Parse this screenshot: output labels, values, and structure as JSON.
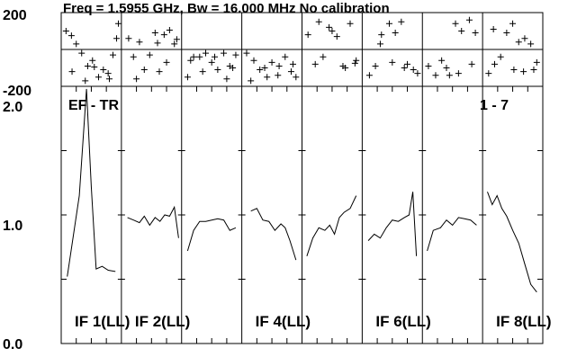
{
  "chart_data": {
    "type": "line",
    "title": "Freq = 1.5955 GHz, Bw = 16.000 MHz  No calibration",
    "panel_label_left": "EF - TR",
    "panel_label_right": "1 - 7",
    "phase_axis": {
      "ylim": [
        -200,
        200
      ],
      "tick_labels": [
        "200",
        "-200"
      ]
    },
    "amp_axis": {
      "ylim": [
        0.0,
        2.0
      ],
      "tick_labels": [
        "2.0",
        "1.0",
        "0.0"
      ]
    },
    "if_labels": [
      "IF 1(LL)",
      "IF 2(LL)",
      "IF 4(LL)",
      "IF 6(LL)",
      "IF 8(LL)"
    ],
    "if_label_slots": [
      0,
      1,
      3,
      5,
      7
    ],
    "n_panels": 8,
    "phase_series": [
      {
        "x": [
          0.08,
          0.17,
          0.25,
          0.34,
          0.44,
          0.52,
          0.62,
          0.7,
          0.78,
          0.86,
          0.92,
          0.95,
          0.18,
          0.4,
          0.55,
          0.8
        ],
        "y": [
          100,
          75,
          30,
          -20,
          -90,
          -60,
          -150,
          -110,
          -130,
          -30,
          60,
          140,
          -120,
          -170,
          -95,
          -160
        ]
      },
      {
        "x": [
          0.12,
          0.2,
          0.3,
          0.38,
          0.47,
          0.56,
          0.63,
          0.71,
          0.8,
          0.88,
          0.25,
          0.6,
          0.75,
          0.92
        ],
        "y": [
          60,
          -40,
          40,
          -110,
          -30,
          90,
          -120,
          80,
          105,
          30,
          -160,
          35,
          -70,
          55
        ]
      },
      {
        "x": [
          0.1,
          0.2,
          0.3,
          0.4,
          0.5,
          0.6,
          0.7,
          0.8,
          0.9,
          0.15,
          0.35,
          0.55,
          0.75,
          0.85
        ],
        "y": [
          -150,
          -40,
          -40,
          -20,
          -70,
          -110,
          -20,
          -90,
          -30,
          -60,
          -120,
          -40,
          -160,
          -100
        ]
      },
      {
        "x": [
          0.08,
          0.2,
          0.3,
          0.42,
          0.5,
          0.62,
          0.72,
          0.82,
          0.9,
          0.15,
          0.38,
          0.6,
          0.85
        ],
        "y": [
          -20,
          -60,
          -110,
          -150,
          -70,
          -90,
          -40,
          -120,
          -150,
          -170,
          -100,
          -140,
          -80
        ]
      },
      {
        "x": [
          0.1,
          0.22,
          0.35,
          0.45,
          0.58,
          0.68,
          0.8,
          0.9,
          0.28,
          0.5,
          0.72,
          0.88
        ],
        "y": [
          80,
          -80,
          -40,
          120,
          70,
          -90,
          140,
          -60,
          150,
          100,
          -100,
          -75
        ]
      },
      {
        "x": [
          0.12,
          0.22,
          0.32,
          0.45,
          0.55,
          0.65,
          0.75,
          0.85,
          0.92,
          0.3,
          0.5,
          0.7
        ],
        "y": [
          -140,
          -90,
          80,
          140,
          90,
          150,
          -80,
          -110,
          -130,
          30,
          -70,
          -100
        ]
      },
      {
        "x": [
          0.1,
          0.22,
          0.32,
          0.45,
          0.55,
          0.65,
          0.78,
          0.88,
          0.4,
          0.6,
          0.82
        ],
        "y": [
          -90,
          -140,
          -60,
          -140,
          140,
          100,
          160,
          90,
          -100,
          -130,
          -80
        ]
      },
      {
        "x": [
          0.1,
          0.2,
          0.3,
          0.4,
          0.5,
          0.6,
          0.7,
          0.8,
          0.9,
          0.18,
          0.52,
          0.68,
          0.85
        ],
        "y": [
          -130,
          -80,
          -40,
          90,
          140,
          40,
          60,
          30,
          -70,
          110,
          -110,
          -120,
          -110
        ]
      }
    ],
    "amp_series": [
      {
        "x": [
          0.1,
          0.3,
          0.42,
          0.5,
          0.58,
          0.68,
          0.78,
          0.9
        ],
        "y": [
          0.52,
          1.15,
          1.98,
          1.22,
          0.58,
          0.6,
          0.57,
          0.56
        ]
      },
      {
        "x": [
          0.1,
          0.2,
          0.3,
          0.38,
          0.47,
          0.56,
          0.64,
          0.72,
          0.8,
          0.88,
          0.95
        ],
        "y": [
          0.98,
          0.96,
          0.94,
          0.99,
          0.92,
          0.98,
          0.95,
          1.0,
          0.99,
          1.06,
          0.82
        ]
      },
      {
        "x": [
          0.1,
          0.2,
          0.3,
          0.4,
          0.5,
          0.6,
          0.7,
          0.8,
          0.9
        ],
        "y": [
          0.72,
          0.88,
          0.95,
          0.95,
          0.96,
          0.97,
          0.96,
          0.88,
          0.9
        ]
      },
      {
        "x": [
          0.15,
          0.25,
          0.35,
          0.45,
          0.55,
          0.65,
          0.72,
          0.8,
          0.9
        ],
        "y": [
          1.03,
          1.05,
          0.96,
          0.95,
          0.88,
          0.93,
          0.9,
          0.8,
          0.65
        ]
      },
      {
        "x": [
          0.08,
          0.18,
          0.28,
          0.38,
          0.46,
          0.54,
          0.62,
          0.7,
          0.8,
          0.9
        ],
        "y": [
          0.68,
          0.82,
          0.9,
          0.88,
          0.92,
          0.85,
          0.98,
          1.02,
          1.05,
          1.15
        ]
      },
      {
        "x": [
          0.1,
          0.2,
          0.3,
          0.4,
          0.5,
          0.6,
          0.7,
          0.78,
          0.84,
          0.9
        ],
        "y": [
          0.8,
          0.85,
          0.82,
          0.9,
          0.96,
          0.95,
          0.98,
          1.0,
          1.18,
          0.68
        ]
      },
      {
        "x": [
          0.08,
          0.18,
          0.3,
          0.4,
          0.5,
          0.6,
          0.7,
          0.8,
          0.9
        ],
        "y": [
          0.72,
          0.88,
          0.9,
          0.96,
          0.92,
          0.98,
          0.97,
          0.96,
          0.92
        ]
      },
      {
        "x": [
          0.08,
          0.16,
          0.24,
          0.32,
          0.4,
          0.5,
          0.6,
          0.7,
          0.8,
          0.9
        ],
        "y": [
          1.18,
          1.08,
          1.15,
          1.05,
          0.99,
          0.88,
          0.78,
          0.62,
          0.46,
          0.4
        ]
      }
    ]
  }
}
